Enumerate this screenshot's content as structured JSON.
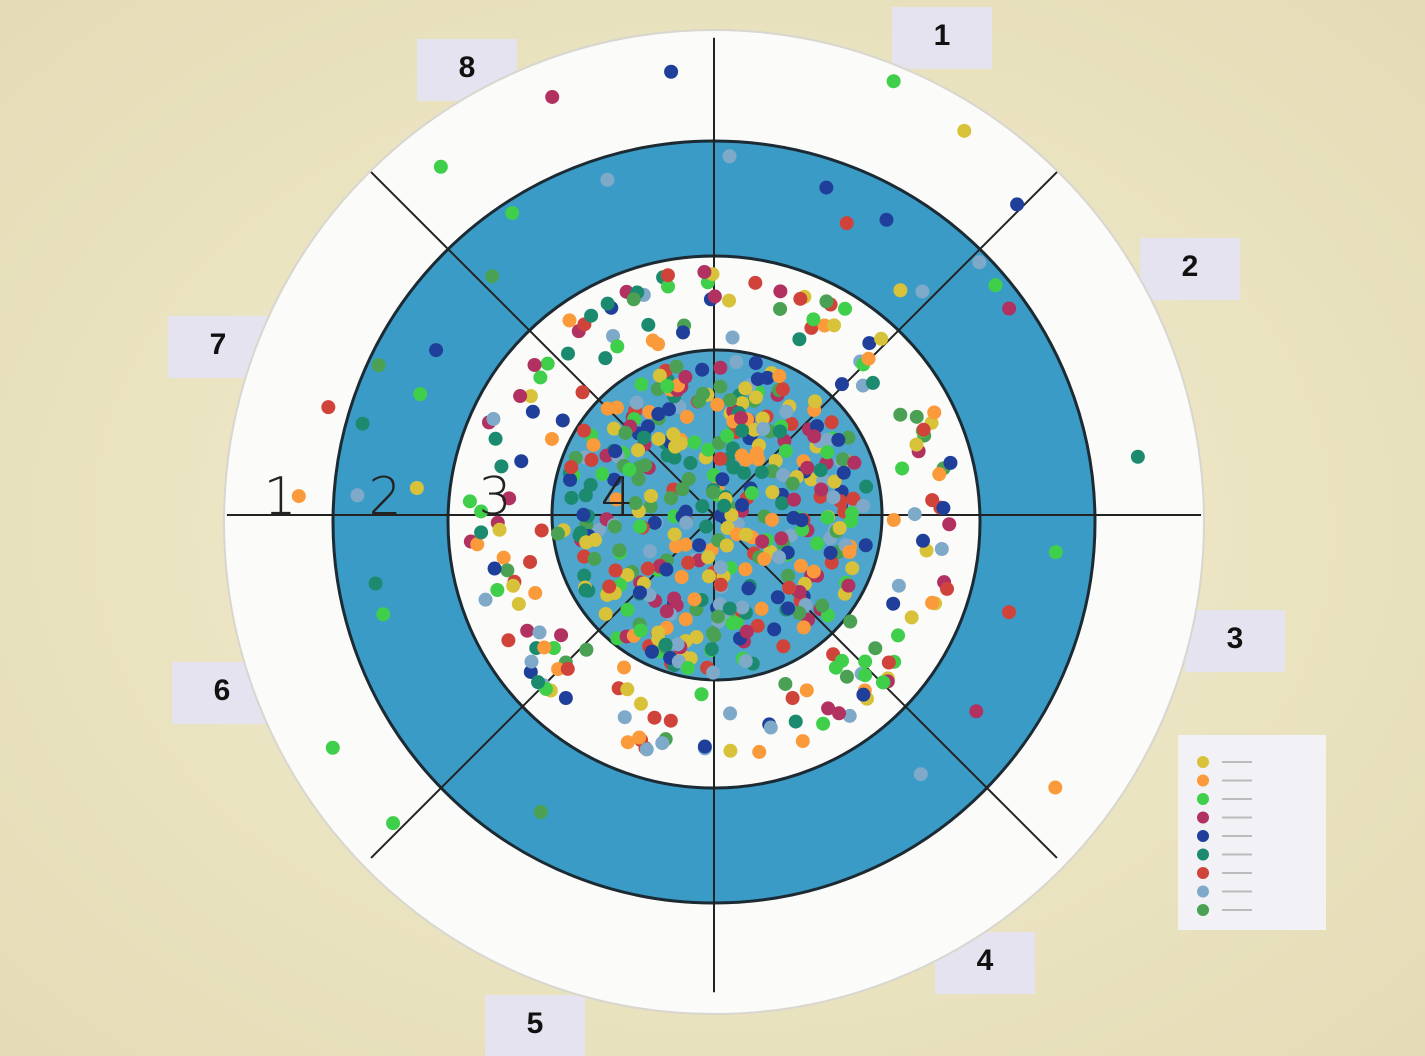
{
  "sector_labels": [
    "1",
    "2",
    "3",
    "4",
    "5",
    "6",
    "7",
    "8"
  ],
  "ring_labels": [
    "1",
    "2",
    "3",
    "4"
  ]
}
